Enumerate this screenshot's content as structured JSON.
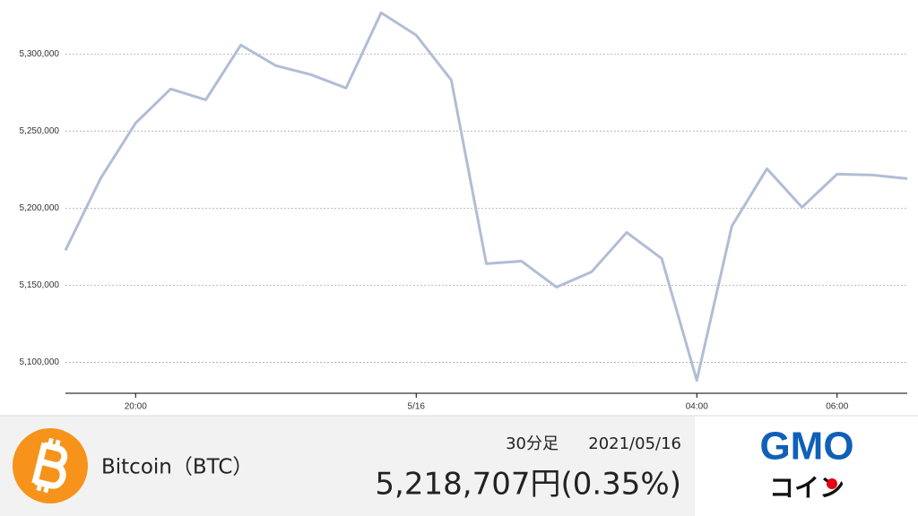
{
  "chart_data": {
    "type": "line",
    "categories": [
      null,
      null,
      "20:00",
      null,
      null,
      null,
      null,
      null,
      null,
      null,
      "5/16",
      null,
      null,
      null,
      null,
      null,
      null,
      null,
      "04:00",
      null,
      null,
      null,
      "06:00",
      null,
      null
    ],
    "series": [
      {
        "color": "#b1bdd5",
        "values": [
          5172700,
          5219200,
          5255200,
          5277300,
          5270300,
          5305800,
          5292400,
          5286600,
          5277900,
          5326700,
          5312200,
          5283100,
          5164000,
          5165700,
          5148800,
          5158700,
          5184300,
          5167400,
          5088400,
          5188400,
          5225600,
          5200600,
          5222100,
          5221500,
          5219200
        ]
      }
    ],
    "ylim": [
      5080000,
      5335000
    ],
    "yticks": [
      {
        "value": 5100000,
        "label": "5,100,000"
      },
      {
        "value": 5150000,
        "label": "5,150,000"
      },
      {
        "value": 5200000,
        "label": "5,200,000"
      },
      {
        "value": 5250000,
        "label": "5,250,000"
      },
      {
        "value": 5300000,
        "label": "5,300,000"
      }
    ],
    "grid": true
  },
  "footer": {
    "asset": "Bitcoin（BTC）",
    "interval": "30分足",
    "date": "2021/05/16",
    "price": "5,218,707円(0.35%)"
  },
  "logo": {
    "brand": "GMO",
    "sub": "コイン"
  }
}
